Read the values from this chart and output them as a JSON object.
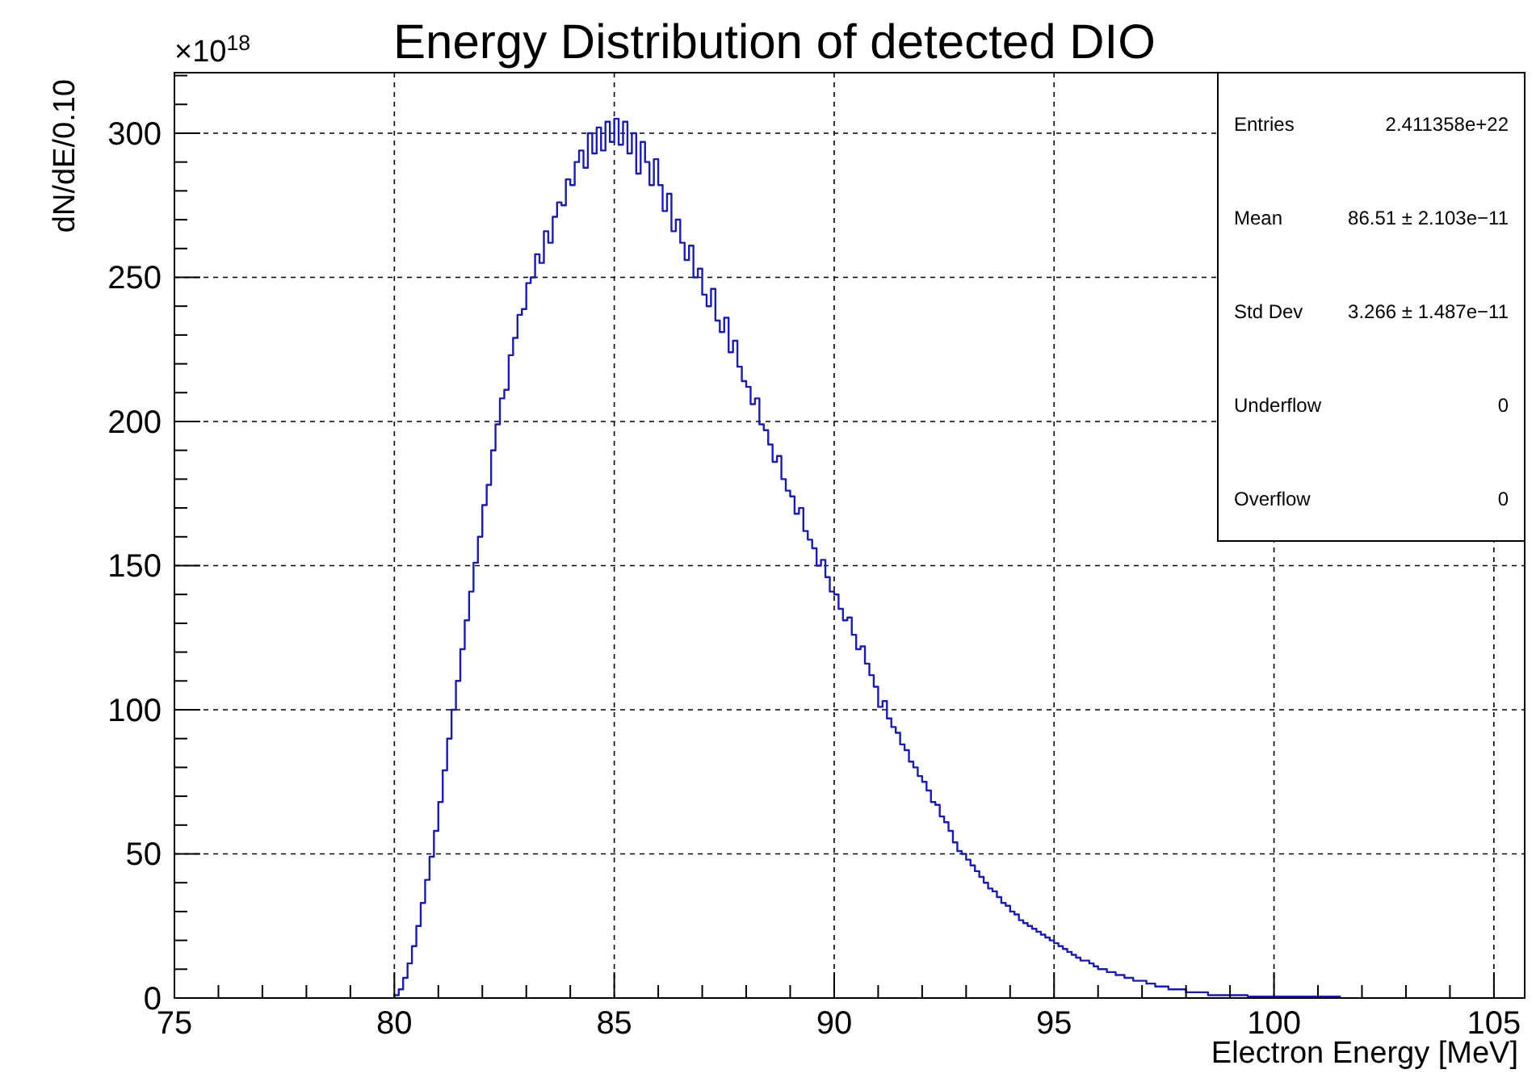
{
  "chart_data": {
    "type": "histogram",
    "title": "Energy Distribution of detected DIO",
    "xlabel": "Electron Energy [MeV]",
    "ylabel": "dN/dE/0.10",
    "annotations": [
      "×10$^{18}$",
      "Entries",
      "2.411358e+22",
      "Mean",
      "86.51 ± 2.103e−11",
      "Std Dev",
      "3.266 ± 1.487e−11",
      "Underflow",
      "0",
      "Overflow",
      "0"
    ],
    "color": "#1c1ca8",
    "grid": true,
    "xlim": [
      75,
      105.7
    ],
    "ylim": [
      0,
      321
    ],
    "xticks": [
      75,
      {
        "value": 76,
        "label": null
      },
      {
        "value": 77,
        "label": null
      },
      {
        "value": 78,
        "label": null
      },
      {
        "value": 79,
        "label": null
      },
      80,
      {
        "value": 81,
        "label": null
      },
      {
        "value": 82,
        "label": null
      },
      {
        "value": 83,
        "label": null
      },
      {
        "value": 84,
        "label": null
      },
      85,
      {
        "value": 86,
        "label": null
      },
      {
        "value": 87,
        "label": null
      },
      {
        "value": 88,
        "label": null
      },
      {
        "value": 89,
        "label": null
      },
      90,
      {
        "value": 91,
        "label": null
      },
      {
        "value": 92,
        "label": null
      },
      {
        "value": 93,
        "label": null
      },
      {
        "value": 94,
        "label": null
      },
      95,
      {
        "value": 96,
        "label": null
      },
      {
        "value": 97,
        "label": null
      },
      {
        "value": 98,
        "label": null
      },
      {
        "value": 99,
        "label": null
      },
      100,
      {
        "value": 101,
        "label": null
      },
      {
        "value": 102,
        "label": null
      },
      {
        "value": 103,
        "label": null
      },
      {
        "value": 104,
        "label": null
      },
      105
    ],
    "yticks": [
      0,
      {
        "value": 10,
        "label": null
      },
      {
        "value": 20,
        "label": null
      },
      {
        "value": 30,
        "label": null
      },
      {
        "value": 40,
        "label": null
      },
      50,
      {
        "value": 60,
        "label": null
      },
      {
        "value": 70,
        "label": null
      },
      {
        "value": 80,
        "label": null
      },
      {
        "value": 90,
        "label": null
      },
      100,
      {
        "value": 110,
        "label": null
      },
      {
        "value": 120,
        "label": null
      },
      {
        "value": 130,
        "label": null
      },
      {
        "value": 140,
        "label": null
      },
      150,
      {
        "value": 160,
        "label": null
      },
      {
        "value": 170,
        "label": null
      },
      {
        "value": 180,
        "label": null
      },
      {
        "value": 190,
        "label": null
      },
      200,
      {
        "value": 210,
        "label": null
      },
      {
        "value": 220,
        "label": null
      },
      {
        "value": 230,
        "label": null
      },
      {
        "value": 240,
        "label": null
      },
      250,
      {
        "value": 260,
        "label": null
      },
      {
        "value": 270,
        "label": null
      },
      {
        "value": 280,
        "label": null
      },
      {
        "value": 290,
        "label": null
      },
      300,
      {
        "value": 310,
        "label": null
      },
      {
        "value": 320,
        "label": null
      }
    ],
    "bins": [
      80,
      80.1,
      80.2,
      80.3,
      80.4,
      80.5,
      80.6,
      80.7,
      80.8,
      80.9,
      81,
      81.1,
      81.2,
      81.3,
      81.4,
      81.5,
      81.6,
      81.7,
      81.8,
      81.9,
      82,
      82.1,
      82.2,
      82.3,
      82.4,
      82.5,
      82.6,
      82.7,
      82.8,
      82.9,
      83,
      83.1,
      83.2,
      83.3,
      83.4,
      83.5,
      83.6,
      83.7,
      83.8,
      83.9,
      84,
      84.1,
      84.2,
      84.3,
      84.4,
      84.5,
      84.6,
      84.7,
      84.8,
      84.9,
      85,
      85.1,
      85.2,
      85.3,
      85.4,
      85.5,
      85.6,
      85.7,
      85.8,
      85.9,
      86,
      86.1,
      86.2,
      86.3,
      86.4,
      86.5,
      86.6,
      86.7,
      86.8,
      86.9,
      87,
      87.1,
      87.2,
      87.3,
      87.4,
      87.5,
      87.6,
      87.7,
      87.8,
      87.9,
      88,
      88.1,
      88.2,
      88.3,
      88.4,
      88.5,
      88.6,
      88.7,
      88.8,
      88.9,
      89,
      89.1,
      89.2,
      89.3,
      89.4,
      89.5,
      89.6,
      89.7,
      89.8,
      89.9,
      90,
      90.1,
      90.2,
      90.3,
      90.4,
      90.5,
      90.6,
      90.7,
      90.8,
      90.9,
      91,
      91.1,
      91.2,
      91.3,
      91.4,
      91.5,
      91.6,
      91.7,
      91.8,
      91.9,
      92,
      92.1,
      92.2,
      92.3,
      92.4,
      92.5,
      92.6,
      92.7,
      92.8,
      92.9,
      93,
      93.1,
      93.2,
      93.3,
      93.4,
      93.5,
      93.6,
      93.7,
      93.8,
      93.9,
      94,
      94.1,
      94.2,
      94.3,
      94.4,
      94.5,
      94.6,
      94.7,
      94.8,
      94.9,
      95,
      95.1,
      95.2,
      95.3,
      95.4,
      95.5,
      95.6,
      95.7,
      95.8,
      95.9,
      96,
      96.1,
      96.2,
      96.3,
      96.4,
      96.5,
      96.6,
      96.7,
      96.8,
      96.9,
      97,
      97.1,
      97.2,
      97.3,
      97.4,
      97.5,
      97.6,
      97.7,
      97.8,
      97.9,
      98,
      98.1,
      98.2,
      98.3,
      98.4,
      98.5,
      98.6,
      98.7,
      98.8,
      98.9,
      99,
      99.1,
      99.2,
      99.3,
      99.4,
      99.5,
      99.6,
      99.7,
      99.8,
      99.9,
      100,
      100.1,
      100.2,
      100.3,
      100.4,
      100.5,
      100.6,
      100.7,
      100.8,
      100.9,
      101,
      101.1,
      101.2,
      101.3,
      101.4,
      101.5
    ],
    "values": [
      1,
      3,
      7,
      12,
      18,
      25,
      33,
      41,
      49,
      58,
      68,
      79,
      90,
      100,
      110,
      121,
      131,
      141,
      151,
      160,
      171,
      178,
      190,
      199,
      208,
      211,
      223,
      229,
      237,
      239,
      248,
      250,
      258,
      255,
      266,
      262,
      271,
      276,
      275,
      284,
      282,
      290,
      294,
      288,
      300,
      293,
      302,
      294,
      304,
      297,
      305,
      296,
      304,
      293,
      300,
      286,
      297,
      290,
      282,
      291,
      282,
      273,
      279,
      266,
      270,
      262,
      256,
      261,
      250,
      253,
      244,
      240,
      246,
      235,
      231,
      236,
      224,
      228,
      219,
      214,
      212,
      206,
      208,
      199,
      197,
      192,
      186,
      188,
      180,
      176,
      174,
      168,
      170,
      162,
      159,
      156,
      150,
      152,
      146,
      141,
      140,
      135,
      131,
      132,
      126,
      121,
      122,
      116,
      112,
      108,
      101,
      103,
      97,
      94,
      92,
      88,
      86,
      82,
      80,
      77,
      75,
      72,
      68,
      67,
      63,
      61,
      58,
      54,
      51,
      50,
      48,
      46,
      44,
      42,
      40,
      38,
      37,
      35,
      33,
      32,
      30,
      29,
      27,
      26,
      25,
      24,
      23,
      22,
      21,
      20,
      19,
      18,
      17,
      16,
      15,
      14,
      13,
      13,
      12,
      11,
      10,
      10,
      9,
      9,
      8,
      8,
      7,
      7,
      6,
      6,
      6,
      5,
      5,
      4,
      4,
      4,
      3,
      3,
      3,
      3,
      2,
      2,
      2,
      2,
      2,
      1,
      1,
      1,
      1,
      1,
      1,
      1,
      1,
      1,
      0.5,
      0.5,
      0.5,
      0.5,
      0.5,
      0.5,
      0.5,
      0.5,
      0.5,
      0.5,
      0.5,
      0.5,
      0.5,
      0.5,
      0.5,
      0.5,
      0.5,
      0.5,
      0.5,
      0.5,
      0.5
    ]
  }
}
